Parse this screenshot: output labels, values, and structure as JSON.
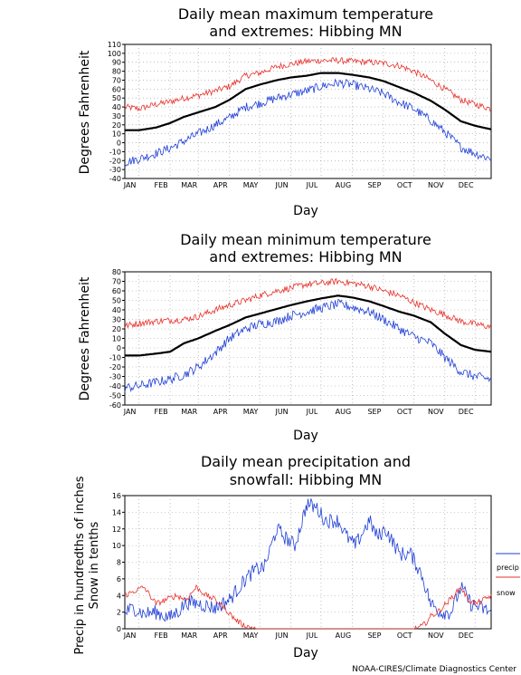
{
  "credit": "NOAA-CIRES/Climate Diagnostics Center",
  "colors": {
    "mean": "#000000",
    "max": "#e8312b",
    "min": "#1f3fd6",
    "grid": "#9a9a9a"
  },
  "chart_data": [
    {
      "type": "line",
      "title_lines": [
        "Daily mean maximum temperature",
        "and extremes: Hibbing MN"
      ],
      "xlabel": "Day",
      "ylabel": "Degrees Fahrenheit",
      "x_categories": [
        "JAN",
        "FEB",
        "MAR",
        "APR",
        "MAY",
        "JUN",
        "JUL",
        "AUG",
        "SEP",
        "OCT",
        "NOV",
        "DEC"
      ],
      "ylim": [
        -40,
        110
      ],
      "yticks": [
        -40,
        -30,
        -20,
        -10,
        0,
        10,
        20,
        30,
        40,
        50,
        60,
        70,
        80,
        90,
        100,
        110
      ],
      "grid": true,
      "series": [
        {
          "role": "max",
          "x_day": [
            1,
            15,
            32,
            46,
            60,
            74,
            91,
            105,
            121,
            135,
            152,
            166,
            182,
            196,
            213,
            227,
            244,
            258,
            274,
            288,
            305,
            319,
            335,
            349,
            365
          ],
          "values": [
            40,
            38,
            43,
            46,
            50,
            53,
            58,
            63,
            75,
            78,
            85,
            88,
            91,
            92,
            92,
            91,
            90,
            89,
            86,
            80,
            70,
            60,
            48,
            43,
            38
          ]
        },
        {
          "role": "mean",
          "x_day": [
            1,
            15,
            32,
            46,
            60,
            74,
            91,
            105,
            121,
            135,
            152,
            166,
            182,
            196,
            213,
            227,
            244,
            258,
            274,
            288,
            305,
            319,
            335,
            349,
            365
          ],
          "values": [
            14,
            14,
            17,
            22,
            29,
            34,
            40,
            48,
            60,
            65,
            70,
            73,
            75,
            78,
            78,
            76,
            73,
            69,
            62,
            56,
            47,
            37,
            24,
            19,
            15
          ]
        },
        {
          "role": "min",
          "x_day": [
            1,
            15,
            32,
            46,
            60,
            74,
            91,
            105,
            121,
            135,
            152,
            166,
            182,
            196,
            213,
            227,
            244,
            258,
            274,
            288,
            305,
            319,
            335,
            349,
            365
          ],
          "values": [
            -22,
            -18,
            -12,
            -6,
            2,
            10,
            20,
            28,
            40,
            44,
            50,
            54,
            58,
            63,
            67,
            65,
            60,
            55,
            45,
            38,
            25,
            12,
            -5,
            -12,
            -18
          ]
        }
      ]
    },
    {
      "type": "line",
      "title_lines": [
        "Daily mean minimum temperature",
        "and extremes: Hibbing MN"
      ],
      "xlabel": "Day",
      "ylabel": "Degrees Fahrenheit",
      "x_categories": [
        "JAN",
        "FEB",
        "MAR",
        "APR",
        "MAY",
        "JUN",
        "JUL",
        "AUG",
        "SEP",
        "OCT",
        "NOV",
        "DEC"
      ],
      "ylim": [
        -60,
        80
      ],
      "yticks": [
        -60,
        -50,
        -40,
        -30,
        -20,
        -10,
        0,
        10,
        20,
        30,
        40,
        50,
        60,
        70,
        80
      ],
      "grid": true,
      "series": [
        {
          "role": "max",
          "x_day": [
            1,
            15,
            32,
            46,
            60,
            74,
            91,
            105,
            121,
            135,
            152,
            166,
            182,
            196,
            213,
            227,
            244,
            258,
            274,
            288,
            305,
            319,
            335,
            349,
            365
          ],
          "values": [
            23,
            26,
            28,
            29,
            30,
            33,
            40,
            45,
            50,
            55,
            60,
            63,
            67,
            68,
            70,
            68,
            65,
            60,
            55,
            48,
            40,
            35,
            28,
            25,
            22
          ]
        },
        {
          "role": "mean",
          "x_day": [
            1,
            15,
            32,
            46,
            60,
            74,
            91,
            105,
            121,
            135,
            152,
            166,
            182,
            196,
            213,
            227,
            244,
            258,
            274,
            288,
            305,
            319,
            335,
            349,
            365
          ],
          "values": [
            -8,
            -8,
            -6,
            -4,
            5,
            10,
            18,
            24,
            32,
            36,
            41,
            45,
            49,
            52,
            55,
            53,
            49,
            44,
            38,
            34,
            27,
            15,
            3,
            -2,
            -4
          ]
        },
        {
          "role": "min",
          "x_day": [
            1,
            15,
            32,
            46,
            60,
            74,
            91,
            105,
            121,
            135,
            152,
            166,
            182,
            196,
            213,
            227,
            244,
            258,
            274,
            288,
            305,
            319,
            335,
            349,
            365
          ],
          "values": [
            -42,
            -40,
            -36,
            -33,
            -28,
            -20,
            -5,
            10,
            20,
            25,
            28,
            34,
            38,
            42,
            46,
            43,
            38,
            30,
            20,
            12,
            5,
            -10,
            -25,
            -30,
            -33
          ]
        }
      ]
    },
    {
      "type": "line",
      "title_lines": [
        "Daily mean precipitation and",
        "snowfall: Hibbing MN"
      ],
      "xlabel": "Day",
      "ylabel_lines": [
        "Precip in hundredths of inches",
        "Snow in tenths"
      ],
      "x_categories": [
        "JAN",
        "FEB",
        "MAR",
        "APR",
        "MAY",
        "JUN",
        "JUL",
        "AUG",
        "SEP",
        "OCT",
        "NOV",
        "DEC"
      ],
      "ylim": [
        0,
        16
      ],
      "yticks": [
        0,
        2,
        4,
        6,
        8,
        10,
        12,
        14,
        16
      ],
      "grid": true,
      "legend": {
        "placement": "right",
        "entries": [
          "precip",
          "snow"
        ]
      },
      "series": [
        {
          "role": "precip",
          "name": "precip",
          "x_day": [
            1,
            10,
            20,
            32,
            45,
            55,
            62,
            75,
            91,
            105,
            121,
            130,
            140,
            152,
            160,
            170,
            182,
            192,
            200,
            213,
            222,
            230,
            244,
            252,
            260,
            274,
            285,
            296,
            305,
            315,
            325,
            335,
            345,
            355,
            365
          ],
          "values": [
            2,
            2.5,
            1.8,
            2,
            1.3,
            2.2,
            3.2,
            3,
            2.5,
            3.5,
            6,
            7,
            7.5,
            12,
            11,
            10,
            15,
            14.5,
            13,
            13,
            11,
            10,
            13,
            11,
            12,
            9,
            9,
            6.5,
            3,
            2,
            2,
            5,
            3,
            2.5,
            2
          ]
        },
        {
          "role": "snow",
          "name": "snow",
          "x_day": [
            1,
            10,
            20,
            32,
            42,
            52,
            62,
            72,
            82,
            91,
            100,
            110,
            118,
            125,
            135,
            150,
            180,
            210,
            240,
            270,
            290,
            296,
            300,
            305,
            312,
            320,
            328,
            335,
            342,
            350,
            358,
            365
          ],
          "values": [
            4,
            4.5,
            5,
            3,
            3.5,
            4,
            3.5,
            5,
            4,
            3.5,
            2.5,
            1.2,
            0.5,
            0.2,
            0,
            0,
            0,
            0,
            0,
            0,
            0,
            0.3,
            0.7,
            1.5,
            2,
            3,
            4,
            5,
            3.5,
            3,
            3.5,
            4
          ]
        }
      ]
    }
  ]
}
